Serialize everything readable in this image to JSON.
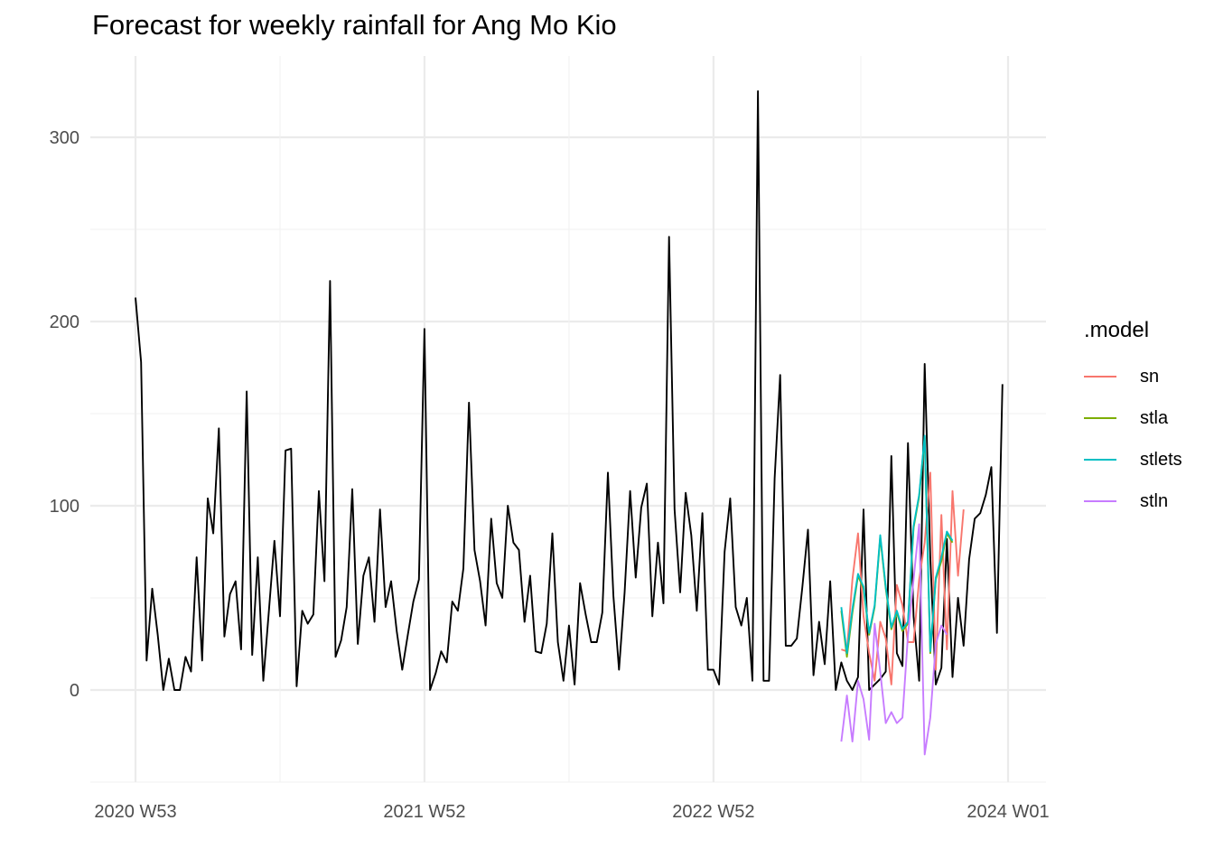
{
  "chart_data": {
    "type": "line",
    "title": "Forecast for weekly rainfall for Ang Mo Kio",
    "xlabel": "",
    "ylabel": "",
    "x_range_weeks": [
      0,
      157
    ],
    "ylim": [
      -50,
      335
    ],
    "y_ticks": [
      0,
      100,
      200,
      300
    ],
    "x_ticks": [
      {
        "label": "2020 W53",
        "week": 0
      },
      {
        "label": "2021 W52",
        "week": 52
      },
      {
        "label": "2022 W52",
        "week": 104
      },
      {
        "label": "2024 W01",
        "week": 157
      }
    ],
    "grid": true,
    "legend_title": ".model",
    "legend_position": "right",
    "observed": {
      "color": "#000000",
      "values": [
        213,
        178,
        16,
        55,
        30,
        0,
        17,
        0,
        0,
        18,
        10,
        72,
        16,
        104,
        85,
        142,
        29,
        52,
        59,
        22,
        162,
        19,
        72,
        5,
        43,
        81,
        40,
        130,
        131,
        2,
        43,
        36,
        41,
        108,
        59,
        222,
        18,
        27,
        45,
        109,
        25,
        62,
        72,
        37,
        98,
        45,
        59,
        32,
        11,
        30,
        48,
        60,
        196,
        0,
        9,
        21,
        15,
        48,
        43,
        66,
        156,
        76,
        59,
        35,
        93,
        58,
        50,
        100,
        80,
        76,
        37,
        62,
        21,
        20,
        36,
        85,
        26,
        5,
        35,
        3,
        58,
        41,
        26,
        26,
        42,
        118,
        51,
        11,
        53,
        108,
        61,
        99,
        112,
        40,
        80,
        47,
        246,
        98,
        53,
        107,
        84,
        43,
        96,
        11,
        11,
        3,
        75,
        104,
        45,
        35,
        50,
        5,
        325,
        5,
        5,
        115,
        171,
        24,
        24,
        28,
        56,
        87,
        8,
        37,
        14,
        59,
        0,
        15,
        5,
        0,
        7,
        98,
        0,
        3,
        6,
        10,
        127,
        20,
        13,
        134,
        40,
        5,
        177,
        72,
        3,
        12,
        82,
        7,
        50,
        24,
        71,
        93,
        96,
        106,
        121,
        31,
        166
      ]
    },
    "series": [
      {
        "name": "sn",
        "color": "#F8766D",
        "start_week": 127,
        "values": [
          22,
          21,
          60,
          85,
          40,
          20,
          5,
          37,
          28,
          3,
          57,
          46,
          26,
          26,
          60,
          80,
          118,
          11,
          95,
          22,
          108,
          62,
          98
        ]
      },
      {
        "name": "stla",
        "color": "#7CAE00",
        "start_week": 127,
        "values": [
          43,
          18,
          42,
          62,
          55,
          30,
          45,
          83,
          55,
          33,
          42,
          32,
          36,
          88,
          105,
          137,
          20,
          60,
          70,
          85,
          80
        ]
      },
      {
        "name": "stlets",
        "color": "#00BFC4",
        "start_week": 127,
        "values": [
          45,
          20,
          44,
          63,
          56,
          31,
          46,
          84,
          56,
          34,
          43,
          33,
          37,
          89,
          106,
          138,
          21,
          61,
          72,
          86,
          81
        ]
      },
      {
        "name": "stln",
        "color": "#C77CFF",
        "start_week": 127,
        "values": [
          -28,
          -3,
          -28,
          5,
          -5,
          -27,
          36,
          10,
          -18,
          -12,
          -18,
          -15,
          30,
          60,
          90,
          -35,
          -15,
          25,
          35,
          30
        ]
      }
    ]
  }
}
